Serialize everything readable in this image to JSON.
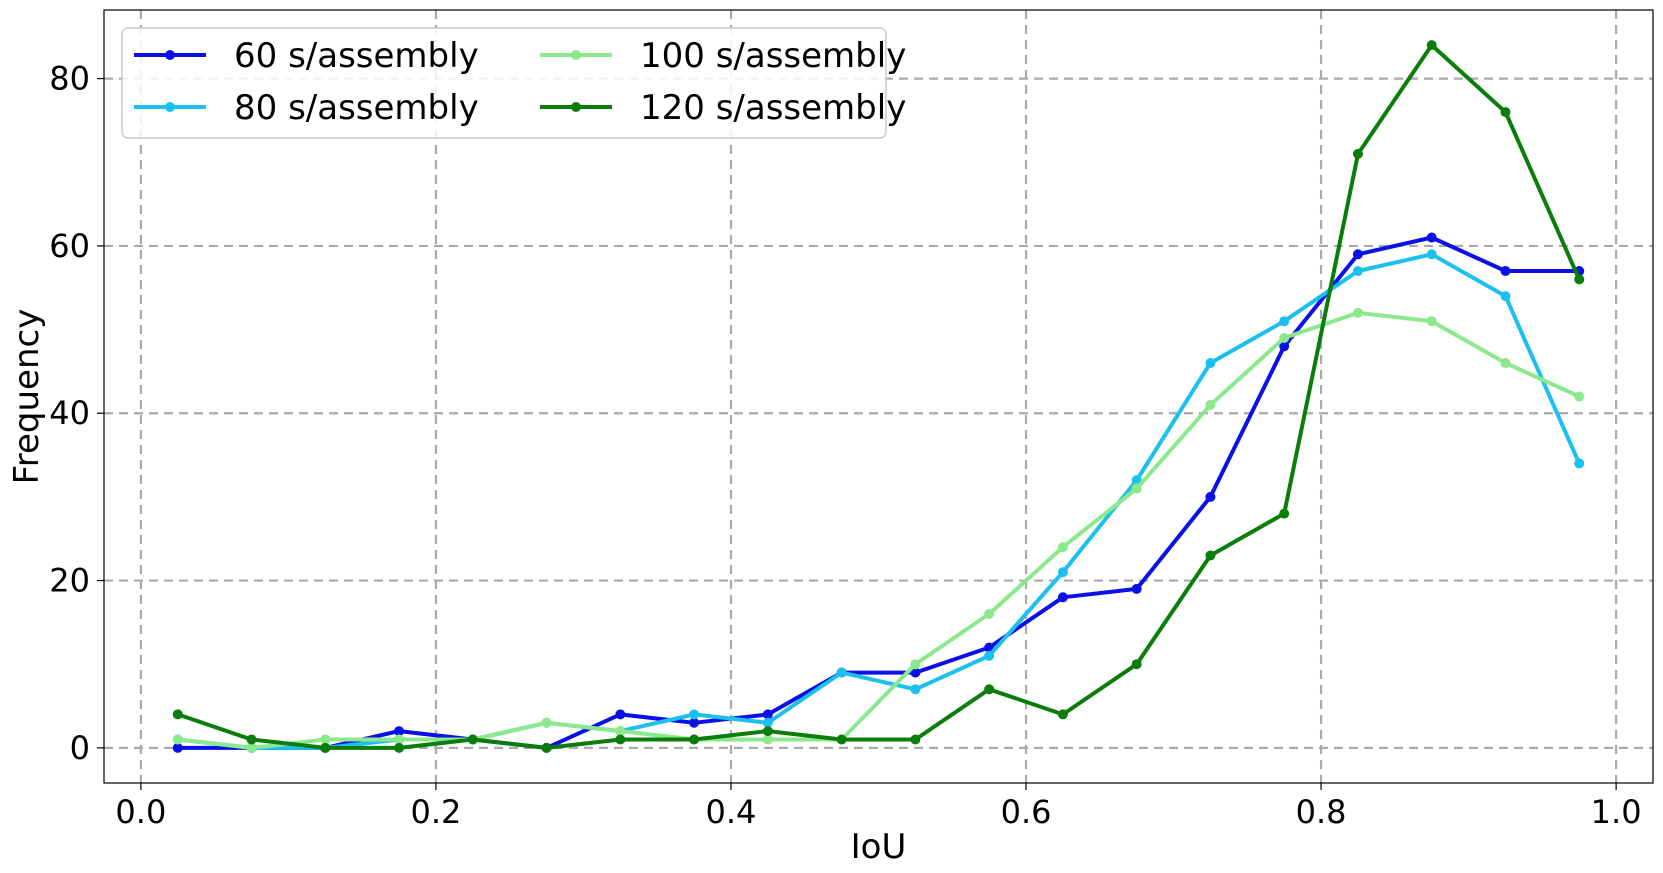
{
  "chart_data": {
    "type": "line",
    "title": "",
    "xlabel": "IoU",
    "ylabel": "Frequency",
    "xlim": [
      -0.025,
      1.025
    ],
    "ylim": [
      -4.2,
      88.2
    ],
    "xticks": [
      0.0,
      0.2,
      0.4,
      0.6,
      0.8,
      1.0
    ],
    "xtick_labels": [
      "0.0",
      "0.2",
      "0.4",
      "0.6",
      "0.8",
      "1.0"
    ],
    "yticks": [
      0,
      20,
      40,
      60,
      80
    ],
    "ytick_labels": [
      "0",
      "20",
      "40",
      "60",
      "80"
    ],
    "grid": true,
    "legend_position": "top-left",
    "x": [
      0.025,
      0.075,
      0.125,
      0.175,
      0.225,
      0.275,
      0.325,
      0.375,
      0.425,
      0.475,
      0.525,
      0.575,
      0.625,
      0.675,
      0.725,
      0.775,
      0.825,
      0.875,
      0.925,
      0.975
    ],
    "series": [
      {
        "name": "60 s/assembly",
        "color": "#0a10e8",
        "values": [
          0,
          0,
          0,
          2,
          1,
          0,
          4,
          3,
          4,
          9,
          9,
          12,
          18,
          19,
          30,
          48,
          59,
          61,
          57,
          57
        ]
      },
      {
        "name": "80 s/assembly",
        "color": "#1cc0f0",
        "values": [
          1,
          0,
          0,
          1,
          1,
          3,
          2,
          4,
          3,
          9,
          7,
          11,
          21,
          32,
          46,
          51,
          57,
          59,
          54,
          34
        ]
      },
      {
        "name": "100 s/assembly",
        "color": "#8ce88c",
        "values": [
          1,
          0,
          1,
          1,
          1,
          3,
          2,
          1,
          1,
          1,
          10,
          16,
          24,
          31,
          41,
          49,
          52,
          51,
          46,
          42
        ]
      },
      {
        "name": "120 s/assembly",
        "color": "#0a7d0a",
        "values": [
          4,
          1,
          0,
          0,
          1,
          0,
          1,
          1,
          2,
          1,
          1,
          7,
          4,
          10,
          23,
          28,
          71,
          84,
          76,
          56
        ]
      }
    ]
  }
}
